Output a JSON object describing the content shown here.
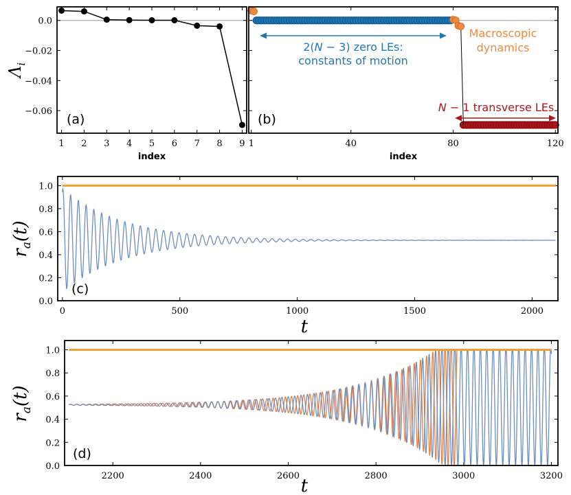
{
  "colors": {
    "blue": "#1f77b4",
    "blue_dark": "#0d4f86",
    "orange": "#f08a3e",
    "orange_line": "#f0a030",
    "red": "#b0151b",
    "red_dark": "#7a0a0e",
    "signal_blue": "#6c8ebf",
    "signal_orange": "#f07d3c",
    "gray": "#aaaaaa"
  },
  "chart_data": [
    {
      "panel_label": "(a)",
      "type": "line",
      "xlabel": "index",
      "ylabel": "Λ_i",
      "x": [
        1,
        2,
        3,
        4,
        5,
        6,
        7,
        8,
        9
      ],
      "values": [
        0.0065,
        0.006,
        0.0005,
        0.0002,
        0.0001,
        0.0001,
        -0.0035,
        -0.004,
        -0.0695
      ],
      "xlim": [
        0.8,
        9.2
      ],
      "ylim": [
        -0.075,
        0.009
      ],
      "xticks": [
        "1",
        "2",
        "3",
        "4",
        "5",
        "6",
        "7",
        "8",
        "9"
      ],
      "yticks": [
        {
          "value": 0.0,
          "label": "0.0"
        },
        {
          "value": -0.02,
          "label": "-0.02"
        },
        {
          "value": -0.04,
          "label": "-0.04"
        },
        {
          "value": -0.06,
          "label": "-0.06"
        }
      ],
      "reference_line": 0
    },
    {
      "panel_label": "(b)",
      "type": "scatter",
      "xlabel": "index",
      "xlim": [
        0,
        121
      ],
      "ylim": [
        -0.075,
        0.009
      ],
      "xticks": [
        "1",
        "40",
        "80",
        "120"
      ],
      "series": [
        {
          "name": "macroscopic",
          "color": "orange",
          "points": [
            [
              1,
              0.0065
            ],
            [
              2,
              0.006
            ],
            [
              80,
              0.0005
            ],
            [
              81,
              0.0001
            ],
            [
              82,
              -0.0035
            ],
            [
              83,
              -0.004
            ]
          ]
        },
        {
          "name": "zero",
          "color": "blue",
          "x_range": [
            3,
            79
          ],
          "value": 0.0
        },
        {
          "name": "transverse",
          "color": "red",
          "x_range": [
            84,
            120
          ],
          "value": -0.0695
        }
      ],
      "annotations": {
        "zero_les": "2(N − 3) zero LEs:",
        "constants": "constants of motion",
        "macro_1": "Macroscopic",
        "macro_2": "dynamics",
        "transverse_n": "N",
        "transverse_rest": " − 1 transverse LEs"
      },
      "reference_line": 0
    },
    {
      "panel_label": "(c)",
      "type": "line",
      "xlabel": "t",
      "ylabel": "r_a(t)",
      "xlim": [
        -20,
        2110
      ],
      "ylim": [
        0.0,
        1.08
      ],
      "xticks": [
        "0",
        "500",
        "1000",
        "1500",
        "2000"
      ],
      "yticks": [
        "0.0",
        "0.2",
        "0.4",
        "0.6",
        "0.8",
        "1.0"
      ],
      "series": [
        {
          "name": "r = 1",
          "color": "orange",
          "x": [
            0,
            2100
          ],
          "values": [
            1.0,
            1.0
          ]
        },
        {
          "name": "decaying oscillation",
          "color": "signal_blue",
          "mean": 0.525,
          "initial_amplitude": 0.45,
          "decay_time": 260,
          "period": 33,
          "t_range": [
            0,
            2100
          ]
        }
      ]
    },
    {
      "panel_label": "(d)",
      "type": "line",
      "xlabel": "t",
      "ylabel": "r_a(t)",
      "xlim": [
        2090,
        3215
      ],
      "ylim": [
        0.0,
        1.08
      ],
      "xticks": [
        "2200",
        "2400",
        "2600",
        "2800",
        "3000",
        "3200"
      ],
      "yticks": [
        "0.0",
        "0.2",
        "0.4",
        "0.6",
        "0.8",
        "1.0"
      ],
      "series": [
        {
          "name": "r = 1",
          "color": "orange",
          "x": [
            2100,
            3200
          ],
          "values": [
            1.0,
            1.0
          ]
        },
        {
          "name": "growing oscillation (orange)",
          "color": "signal_orange",
          "mean": 0.525,
          "initial_amplitude": 0.004,
          "growth_time": 175,
          "period": 14,
          "t_range": [
            2100,
            2985
          ]
        },
        {
          "name": "growing oscillation (blue)",
          "color": "signal_blue",
          "mean": 0.525,
          "initial_amplitude": 0.004,
          "growth_time": 175,
          "period": 14.6,
          "t_range": [
            2100,
            3200
          ]
        }
      ]
    }
  ]
}
